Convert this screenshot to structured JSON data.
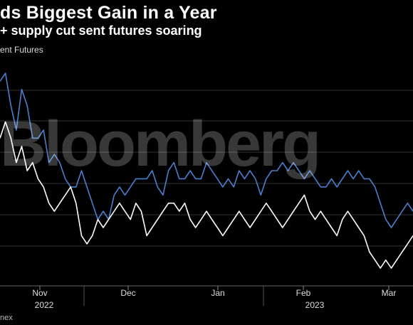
{
  "header": {
    "title": "ds Biggest Gain in a Year",
    "subtitle": "+ supply cut sent futures soaring",
    "series_label": "ent Futures",
    "source": "nex",
    "watermark": "Bloomberg"
  },
  "colors": {
    "background": "#000000",
    "series_blue": "#4a7fd0",
    "series_white": "#ffffff",
    "grid": "#333333"
  },
  "chart_data": {
    "type": "line",
    "x_tick_labels": [
      "Nov",
      "Dec",
      "Jan",
      "Feb",
      "Mar"
    ],
    "year_labels": [
      "2022",
      "2023"
    ],
    "grid": true,
    "series": [
      {
        "color": "#4a7fd0",
        "x": [
          0,
          2,
          4,
          6,
          8,
          10,
          12,
          14,
          16,
          18,
          20,
          22,
          24,
          26,
          28,
          30,
          32,
          34,
          36,
          38,
          40,
          42,
          44,
          46,
          48,
          50,
          52,
          54,
          56,
          58,
          60,
          62,
          64,
          66,
          68,
          70,
          72,
          74,
          76,
          78,
          80,
          82,
          84,
          86,
          88,
          90,
          92,
          94,
          96,
          98,
          100,
          102,
          104,
          106,
          108,
          110,
          112,
          114,
          116,
          118,
          120,
          122,
          124,
          126,
          128,
          130,
          132,
          134,
          136,
          138,
          140,
          142,
          144,
          146,
          148,
          150,
          152
        ],
        "values": [
          93,
          94,
          90,
          87,
          92,
          90,
          86,
          86,
          87,
          83,
          84,
          83,
          81,
          80,
          80,
          82,
          80,
          78,
          76,
          77,
          76,
          79,
          80,
          79,
          80,
          81,
          81,
          81,
          82,
          80,
          79,
          82,
          83,
          81,
          81,
          82,
          81,
          81,
          83,
          82,
          81,
          80,
          81,
          80,
          82,
          81,
          82,
          81,
          79,
          81,
          82,
          82,
          83,
          82,
          83,
          82,
          81,
          82,
          81,
          80,
          80,
          81,
          80,
          81,
          82,
          81,
          82,
          81,
          81,
          80,
          78,
          76,
          75,
          76,
          77,
          78,
          77
        ]
      },
      {
        "color": "#ffffff",
        "x": [
          0,
          2,
          4,
          6,
          8,
          10,
          12,
          14,
          16,
          18,
          20,
          22,
          24,
          26,
          28,
          30,
          32,
          34,
          36,
          38,
          40,
          42,
          44,
          46,
          48,
          50,
          52,
          54,
          56,
          58,
          60,
          62,
          64,
          66,
          68,
          70,
          72,
          74,
          76,
          78,
          80,
          82,
          84,
          86,
          88,
          90,
          92,
          94,
          96,
          98,
          100,
          102,
          104,
          106,
          108,
          110,
          112,
          114,
          116,
          118,
          120,
          122,
          124,
          126,
          128,
          130,
          132,
          134,
          136,
          138,
          140,
          142,
          144,
          146,
          148,
          150,
          152
        ],
        "values": [
          86,
          88,
          86,
          83,
          85,
          82,
          83,
          81,
          80,
          78,
          77,
          78,
          79,
          80,
          78,
          74,
          73,
          74,
          76,
          75,
          76,
          77,
          78,
          77,
          76,
          78,
          77,
          74,
          75,
          76,
          77,
          78,
          78,
          77,
          78,
          76,
          75,
          76,
          77,
          76,
          75,
          74,
          75,
          76,
          77,
          76,
          75,
          76,
          77,
          78,
          77,
          76,
          75,
          76,
          77,
          78,
          79,
          77,
          76,
          77,
          76,
          75,
          74,
          76,
          77,
          76,
          75,
          74,
          72,
          71,
          70,
          71,
          70,
          71,
          72,
          73,
          74
        ]
      }
    ]
  }
}
